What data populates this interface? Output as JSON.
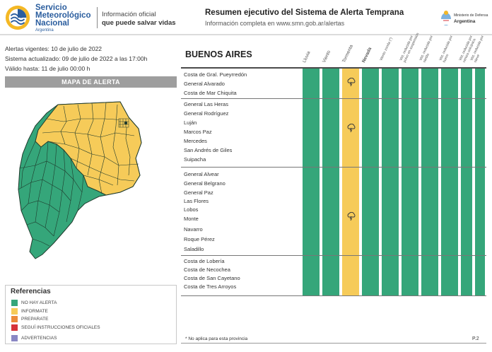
{
  "header": {
    "org_name": [
      "Servicio",
      "Meteorológico",
      "Nacional"
    ],
    "org_country": "Argentina",
    "slogan_line1": "Información oficial",
    "slogan_line2": "que puede salvar vidas",
    "title": "Resumen ejecutivo del Sistema de Alerta Temprana",
    "subtitle": "Información completa en www.smn.gob.ar/alertas",
    "ministry": "Ministerio de Defensa",
    "ministry_country": "Argentina"
  },
  "info": {
    "vigentes": "Alertas vigentes: 10 de julio de 2022",
    "actualizado": "Sistema actualizado: 09 de julio de 2022 a las 17:00h",
    "valido": "Válido hasta: 11 de julio 00:00 h"
  },
  "mapa_title": "MAPA DE ALERTA",
  "referencias": {
    "title": "Referencias",
    "items": [
      {
        "label": "NO HAY ALERTA",
        "color": "#35a67a"
      },
      {
        "label": "INFORMATE",
        "color": "#f6cb59"
      },
      {
        "label": "PREPARATE",
        "color": "#ec8a3a"
      },
      {
        "label": "SEGUÍ INSTRUCCIONES OFICIALES",
        "color": "#d6323a"
      },
      {
        "label": "ADVERTENCIAS",
        "color": "#8a87c4"
      }
    ]
  },
  "province": "BUENOS AIRES",
  "columns": [
    "Lluvia",
    "Viento",
    "Tormenta",
    "Nevada",
    "Viento zonda (*)",
    "Vist. reducida por polvo en suspensión",
    "Vist. reducida por niebla",
    "Vist. reducida por humo",
    "Vist. reducida por ceniza volcánica",
    "Vist. reducida por nieve"
  ],
  "groups": [
    {
      "cities": [
        "Costa de Gral. Pueyrredón",
        "General Alvarado",
        "Costa de Mar Chiquita"
      ],
      "statuses": [
        "green",
        "green",
        "yellow",
        "green",
        "green",
        "green",
        "green",
        "green",
        "green",
        "green"
      ],
      "storm_icon": "thunderstorm-icon"
    },
    {
      "cities": [
        "General Las Heras",
        "General Rodríguez",
        "Luján",
        "Marcos Paz",
        "Mercedes",
        "San Andrés de Giles",
        "Suipacha"
      ],
      "statuses": [
        "green",
        "green",
        "yellow",
        "green",
        "green",
        "green",
        "green",
        "green",
        "green",
        "green"
      ],
      "storm_icon": "thunderstorm-icon"
    },
    {
      "cities": [
        "General Alvear",
        "General Belgrano",
        "General Paz",
        "Las Flores",
        "Lobos",
        "Monte",
        "Navarro",
        "Roque Pérez",
        "Saladillo"
      ],
      "statuses": [
        "green",
        "green",
        "yellow",
        "green",
        "green",
        "green",
        "green",
        "green",
        "green",
        "green"
      ],
      "storm_icon": "thunderstorm-icon"
    },
    {
      "cities": [
        "Costa de Lobería",
        "Costa de Necochea",
        "Costa de San Cayetano",
        "Costa de Tres Arroyos"
      ],
      "statuses": [
        "green",
        "green",
        "green",
        "green",
        "green",
        "green",
        "green",
        "green",
        "green",
        "green"
      ],
      "storm_icon": null
    }
  ],
  "footnote": "* No aplica para esta provincia",
  "page": "P.2",
  "colors": {
    "green": "#35a67a",
    "yellow": "#f6cb59",
    "brand_blue": "#2a5d9e",
    "logo_yellow": "#f4b825"
  }
}
